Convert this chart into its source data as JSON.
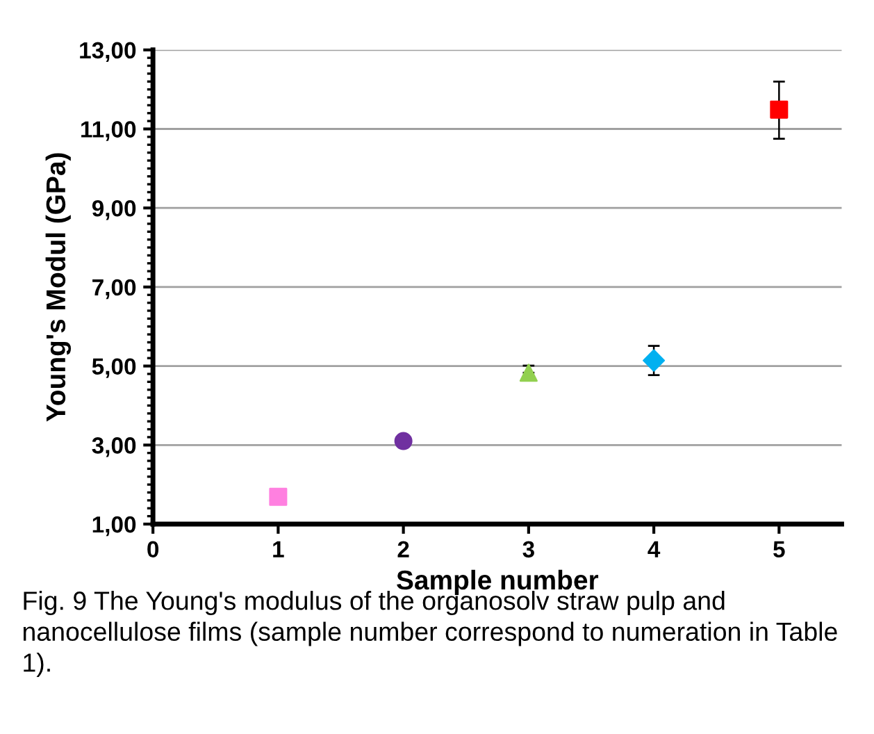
{
  "chart_data": {
    "type": "scatter",
    "xlabel": "Sample number",
    "ylabel": "Young's Modul (GPa)",
    "xlim": [
      0,
      5.5
    ],
    "xticks": [
      0,
      1,
      2,
      3,
      4,
      5
    ],
    "ylim": [
      1,
      13
    ],
    "yticks": [
      {
        "value": 1,
        "label": "1,00"
      },
      {
        "value": 3,
        "label": "3,00"
      },
      {
        "value": 5,
        "label": "5,00"
      },
      {
        "value": 7,
        "label": "7,00"
      },
      {
        "value": 9,
        "label": "9,00"
      },
      {
        "value": 11,
        "label": "11,00"
      },
      {
        "value": 13,
        "label": "13,00"
      }
    ],
    "grid": "y",
    "series": [
      {
        "x": [
          1
        ],
        "values": [
          1.69
        ],
        "color": "#ff80e0",
        "marker": "square"
      },
      {
        "x": [
          2
        ],
        "values": [
          3.1
        ],
        "color": "#7030a0",
        "marker": "circle"
      },
      {
        "x": [
          3
        ],
        "values": [
          4.83
        ],
        "errors": [
          [
            4.83,
            5.01
          ]
        ],
        "color": "#92d050",
        "marker": "triangle"
      },
      {
        "x": [
          4
        ],
        "values": [
          5.14
        ],
        "errors": [
          [
            4.77,
            5.51
          ]
        ],
        "color": "#00b0f0",
        "marker": "diamond"
      },
      {
        "x": [
          5
        ],
        "values": [
          11.49
        ],
        "errors": [
          [
            10.75,
            12.2
          ]
        ],
        "color": "#ff0000",
        "marker": "square"
      }
    ],
    "annotations": [
      "Fig. 9 The Young's modulus of the organosolv straw pulp and nanocellulose films (sample number correspond to numeration in Table 1)."
    ]
  }
}
